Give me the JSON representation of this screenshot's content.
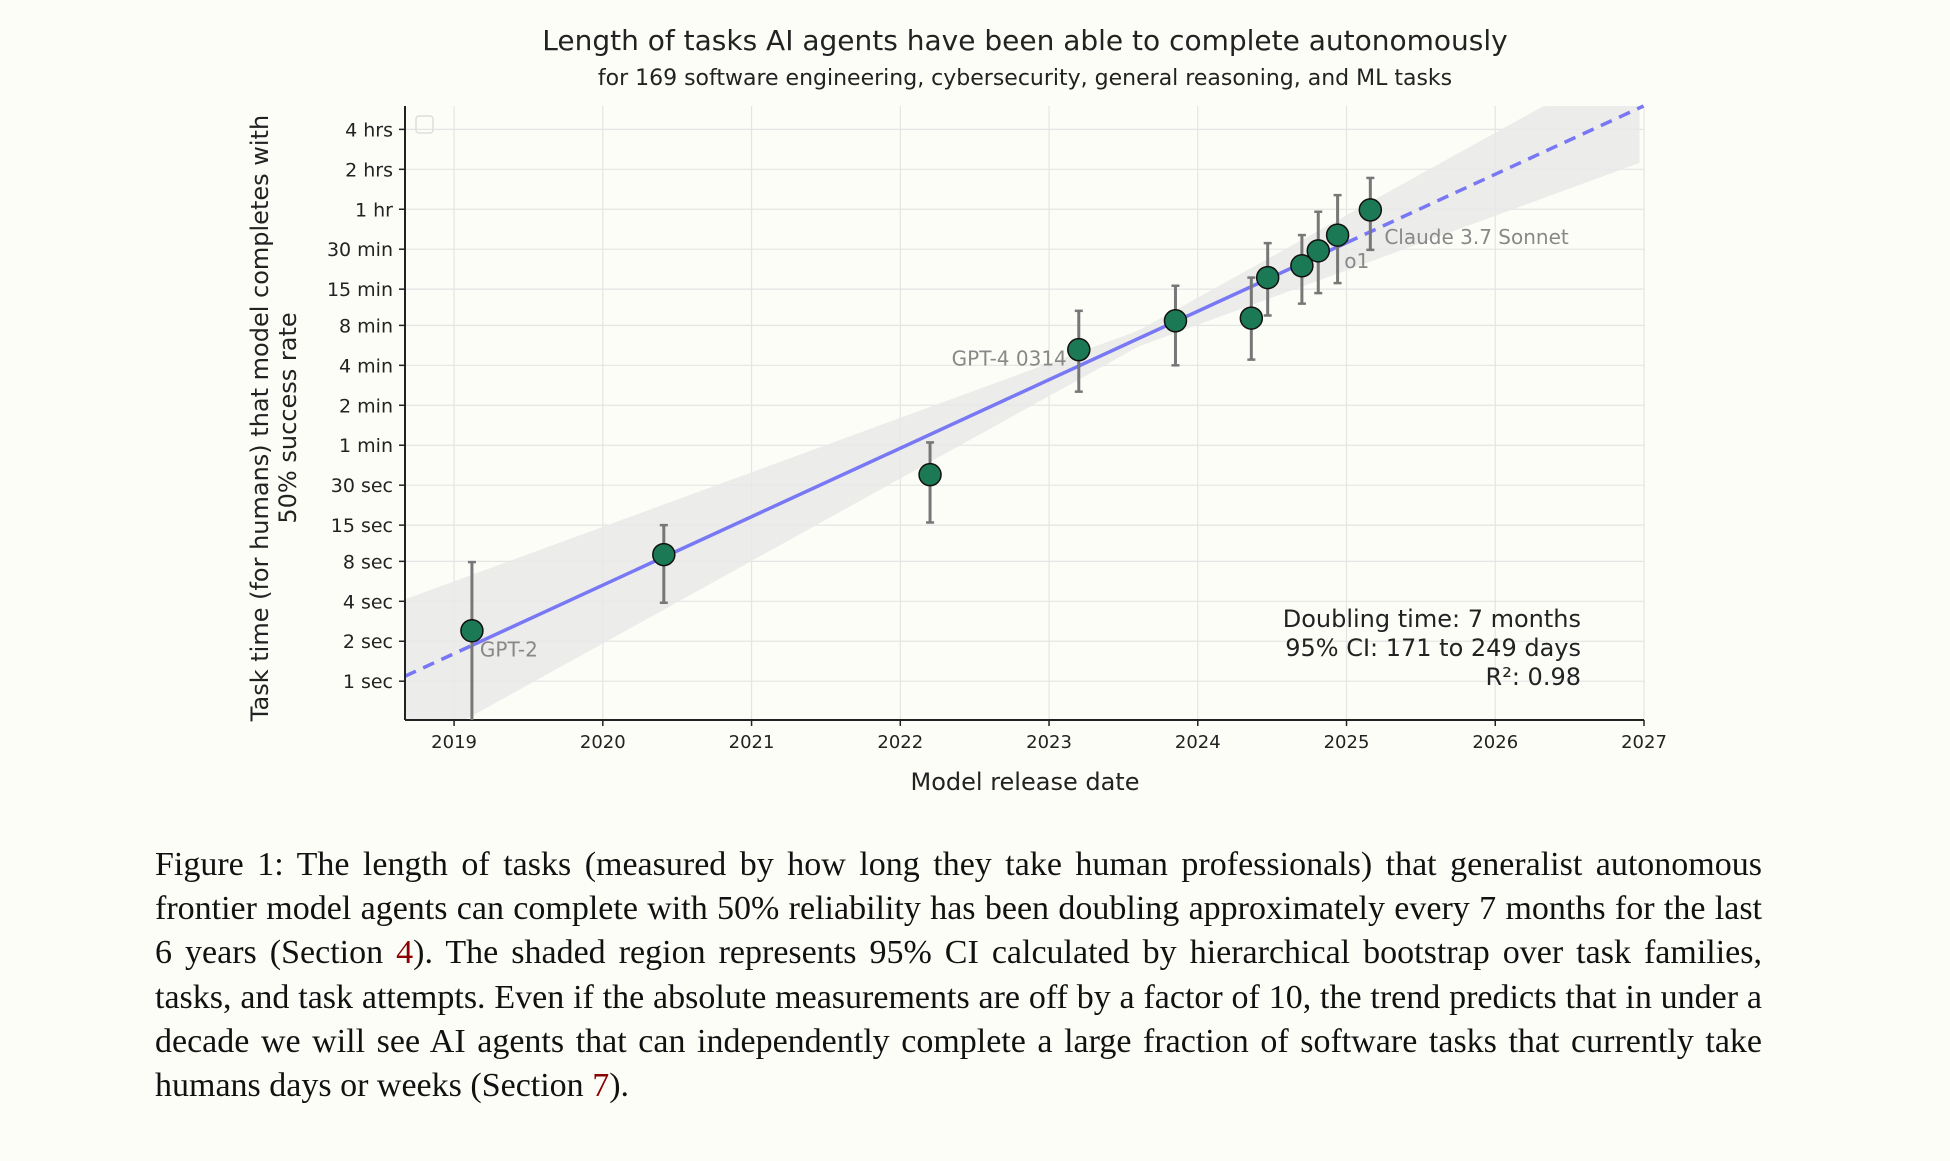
{
  "chart_data": {
    "type": "scatter",
    "title": "Length of tasks AI agents have been able to complete autonomously",
    "subtitle": "for 169 software engineering, cybersecurity, general reasoning, and ML tasks",
    "xlabel": "Model release date",
    "ylabel_line1": "Task time (for humans) that model completes with",
    "ylabel_line2": "50% success rate",
    "x_scale": "date",
    "y_scale": "log2",
    "xlim": [
      2018.67,
      2027
    ],
    "ylim_seconds": [
      0.51,
      21600
    ],
    "grid": true,
    "x_ticks": [
      "2019",
      "2020",
      "2021",
      "2022",
      "2023",
      "2024",
      "2025",
      "2026",
      "2027"
    ],
    "y_ticks": [
      {
        "label": "1 sec",
        "seconds": 1
      },
      {
        "label": "2 sec",
        "seconds": 2
      },
      {
        "label": "4 sec",
        "seconds": 4
      },
      {
        "label": "8 sec",
        "seconds": 8
      },
      {
        "label": "15 sec",
        "seconds": 15
      },
      {
        "label": "30 sec",
        "seconds": 30
      },
      {
        "label": "1 min",
        "seconds": 60
      },
      {
        "label": "2 min",
        "seconds": 120
      },
      {
        "label": "4 min",
        "seconds": 240
      },
      {
        "label": "8 min",
        "seconds": 480
      },
      {
        "label": "15 min",
        "seconds": 900
      },
      {
        "label": "30 min",
        "seconds": 1800
      },
      {
        "label": "1 hr",
        "seconds": 3600
      },
      {
        "label": "2 hrs",
        "seconds": 7200
      },
      {
        "label": "4 hrs",
        "seconds": 14400
      }
    ],
    "points": [
      {
        "label": "GPT-2",
        "date": 2019.12,
        "seconds": 2.4,
        "ci_low": 0.3,
        "ci_high": 7.9
      },
      {
        "label": "",
        "date": 2020.41,
        "seconds": 9,
        "ci_low": 3.9,
        "ci_high": 15
      },
      {
        "label": "",
        "date": 2022.2,
        "seconds": 36,
        "ci_low": 15.7,
        "ci_high": 63
      },
      {
        "label": "GPT-4 0314",
        "date": 2023.2,
        "seconds": 315,
        "ci_low": 152,
        "ci_high": 618
      },
      {
        "label": "",
        "date": 2023.85,
        "seconds": 520,
        "ci_low": 240,
        "ci_high": 955
      },
      {
        "label": "",
        "date": 2024.36,
        "seconds": 545,
        "ci_low": 265,
        "ci_high": 1100
      },
      {
        "label": "",
        "date": 2024.47,
        "seconds": 1100,
        "ci_low": 570,
        "ci_high": 2000
      },
      {
        "label": "",
        "date": 2024.7,
        "seconds": 1350,
        "ci_low": 700,
        "ci_high": 2300
      },
      {
        "label": "o1",
        "date": 2024.81,
        "seconds": 1750,
        "ci_low": 840,
        "ci_high": 3450
      },
      {
        "label": "",
        "date": 2024.94,
        "seconds": 2300,
        "ci_low": 1000,
        "ci_high": 4600
      },
      {
        "label": "Claude 3.7 Sonnet",
        "date": 2025.16,
        "seconds": 3560,
        "ci_low": 1780,
        "ci_high": 6200
      }
    ],
    "trend": {
      "doubling_months": 7,
      "log2_seconds_at_2019": 0.69,
      "fit_range": [
        2019.12,
        2025.0
      ]
    },
    "annotation": [
      "Doubling time: 7 months",
      "95% CI: 171 to 249 days",
      "R²: 0.98"
    ],
    "colors": {
      "point": "#1b7a55",
      "trend": "#7878f5",
      "band": "#e9e9e9",
      "errorbar": "#777777",
      "label": "#888888"
    }
  },
  "caption": {
    "before_ref1": "Figure 1: The length of tasks (measured by how long they take human professionals) that generalist autonomous frontier model agents can complete with 50% reliability has been doubling approximately every 7 months for the last 6 years (Section ",
    "ref1": "4",
    "between": ").  The shaded region represents 95% CI calculated by hierarchical bootstrap over task families, tasks, and task attempts. Even if the absolute measurements are off by a factor of 10, the trend predicts that in under a decade we will see AI agents that can independently complete a large fraction of software tasks that currently take humans days or weeks (Section ",
    "ref2": "7",
    "after_ref2": ")."
  }
}
